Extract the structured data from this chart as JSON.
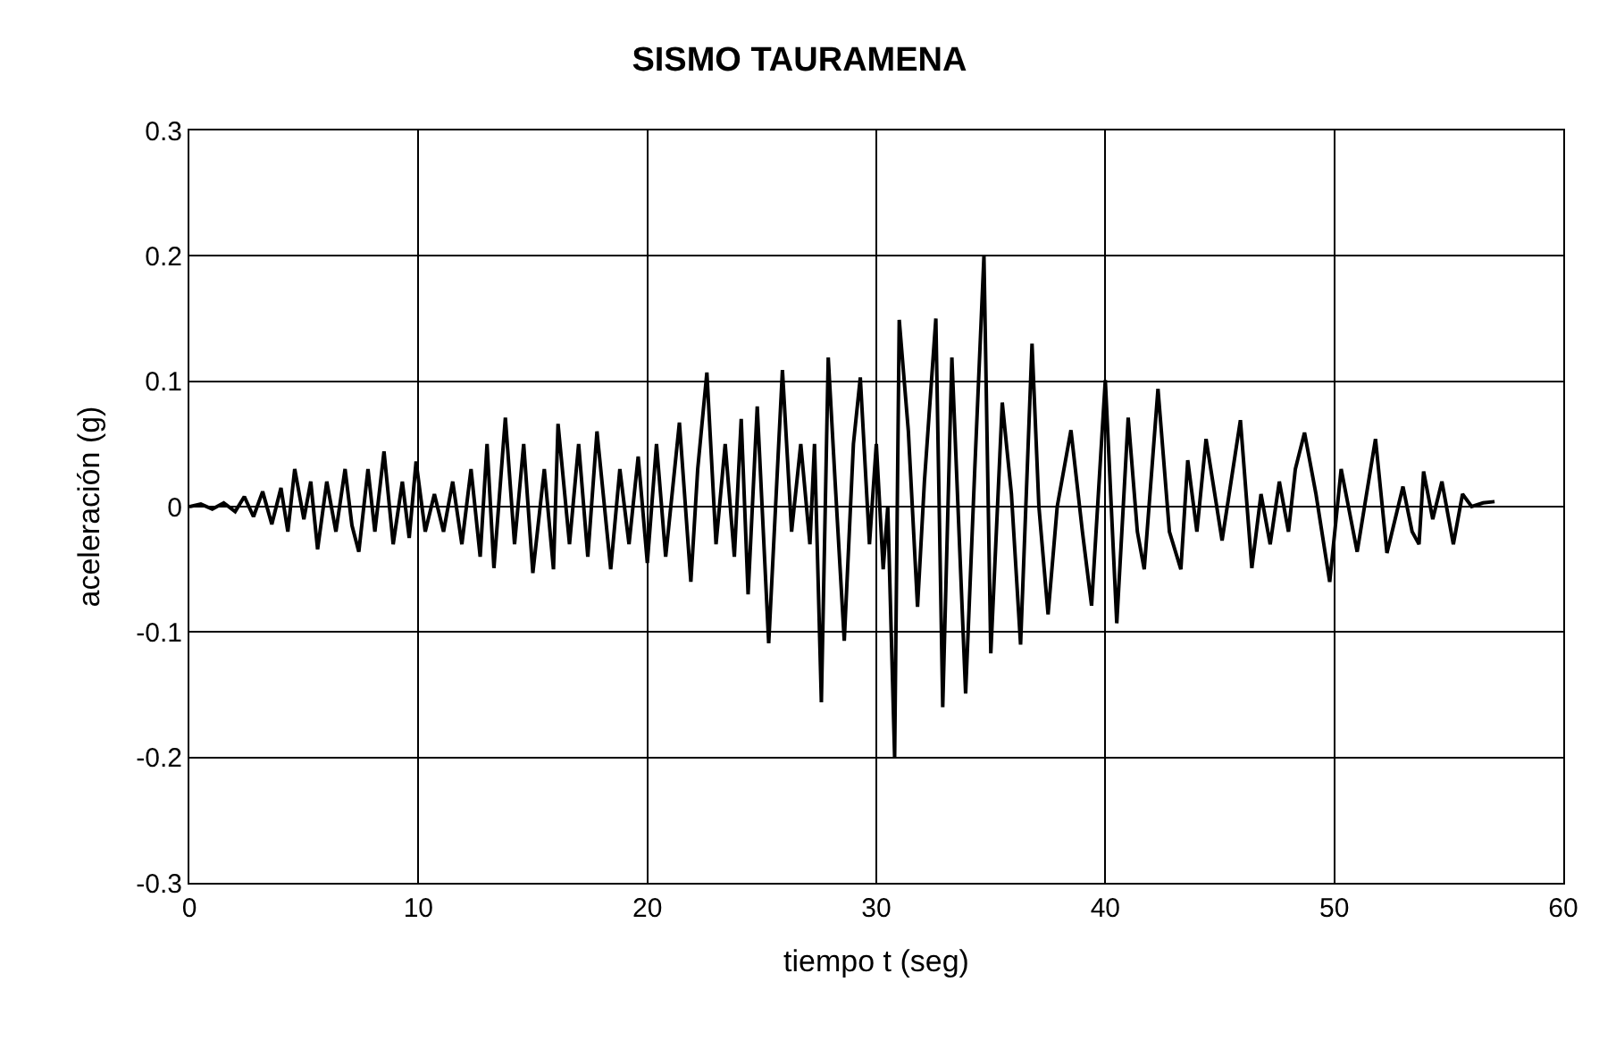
{
  "chart_data": {
    "type": "line",
    "title": "SISMO TAURAMENA",
    "xlabel": "tiempo t (seg)",
    "ylabel": "aceleración (g)",
    "xlim": [
      0,
      60
    ],
    "xticks": [
      0,
      10,
      20,
      30,
      40,
      50,
      60
    ],
    "ylim": [
      -0.3,
      0.3
    ],
    "yticks": [
      -0.3,
      -0.2,
      -0.1,
      0,
      0.1,
      0.2,
      0.3
    ],
    "grid": true,
    "marker": "none",
    "line_style": "solid",
    "series": [
      {
        "color": "#000000",
        "x": [
          0,
          0.5,
          1,
          1.5,
          2,
          2.4,
          2.8,
          3.2,
          3.6,
          4.0,
          4.3,
          4.6,
          5.0,
          5.3,
          5.6,
          6.0,
          6.4,
          6.8,
          7.1,
          7.4,
          7.8,
          8.1,
          8.5,
          8.9,
          9.3,
          9.6,
          9.9,
          10.3,
          10.7,
          11.1,
          11.5,
          11.9,
          12.3,
          12.7,
          13.0,
          13.3,
          13.8,
          14.2,
          14.6,
          15.0,
          15.5,
          15.9,
          16.1,
          16.6,
          17.0,
          17.4,
          17.8,
          18.4,
          18.8,
          19.2,
          19.6,
          20.0,
          20.4,
          20.8,
          21.4,
          21.9,
          22.2,
          22.6,
          23.0,
          23.4,
          23.8,
          24.1,
          24.4,
          24.8,
          25.3,
          25.9,
          26.3,
          26.7,
          27.1,
          27.3,
          27.6,
          27.9,
          28.2,
          28.6,
          29.0,
          29.3,
          29.7,
          30.0,
          30.3,
          30.5,
          30.8,
          31.0,
          31.4,
          31.8,
          32.1,
          32.6,
          32.9,
          33.3,
          33.9,
          34.3,
          34.7,
          35.0,
          35.5,
          35.9,
          36.3,
          36.8,
          37.1,
          37.5,
          37.9,
          38.5,
          39.0,
          39.4,
          40.0,
          40.5,
          41.0,
          41.4,
          41.7,
          42.3,
          42.8,
          43.3,
          43.6,
          44.0,
          44.4,
          45.1,
          45.9,
          46.4,
          46.8,
          47.2,
          47.6,
          48.0,
          48.3,
          48.7,
          49.2,
          49.8,
          50.3,
          51.0,
          51.8,
          52.3,
          53.0,
          53.4,
          53.7,
          53.9,
          54.3,
          54.7,
          55.2,
          55.6,
          56.0,
          56.5,
          57.0
        ],
        "values": [
          0,
          0.002,
          -0.002,
          0.003,
          -0.004,
          0.008,
          -0.008,
          0.012,
          -0.014,
          0.015,
          -0.02,
          0.03,
          -0.01,
          0.02,
          -0.034,
          0.02,
          -0.02,
          0.03,
          -0.015,
          -0.036,
          0.03,
          -0.02,
          0.044,
          -0.03,
          0.02,
          -0.025,
          0.036,
          -0.02,
          0.01,
          -0.02,
          0.02,
          -0.03,
          0.03,
          -0.04,
          0.05,
          -0.049,
          0.071,
          -0.03,
          0.05,
          -0.053,
          0.03,
          -0.05,
          0.066,
          -0.03,
          0.05,
          -0.04,
          0.06,
          -0.05,
          0.03,
          -0.03,
          0.04,
          -0.045,
          0.05,
          -0.04,
          0.067,
          -0.06,
          0.03,
          0.107,
          -0.03,
          0.05,
          -0.04,
          0.07,
          -0.07,
          0.08,
          -0.109,
          0.109,
          -0.02,
          0.05,
          -0.03,
          0.05,
          -0.156,
          0.119,
          0.02,
          -0.107,
          0.05,
          0.103,
          -0.03,
          0.05,
          -0.05,
          0.0,
          -0.2,
          0.149,
          0.06,
          -0.08,
          0.02,
          0.15,
          -0.16,
          0.119,
          -0.149,
          0.03,
          0.2,
          -0.117,
          0.083,
          0.01,
          -0.11,
          0.13,
          0.0,
          -0.086,
          0.0,
          0.061,
          -0.02,
          -0.079,
          0.101,
          -0.093,
          0.071,
          -0.02,
          -0.05,
          0.094,
          -0.02,
          -0.05,
          0.037,
          -0.02,
          0.054,
          -0.027,
          0.069,
          -0.049,
          0.01,
          -0.03,
          0.02,
          -0.02,
          0.03,
          0.059,
          0.01,
          -0.06,
          0.03,
          -0.036,
          0.054,
          -0.037,
          0.016,
          -0.02,
          -0.03,
          0.028,
          -0.01,
          0.02,
          -0.03,
          0.01,
          0.0,
          0.003,
          0.004
        ]
      }
    ]
  }
}
